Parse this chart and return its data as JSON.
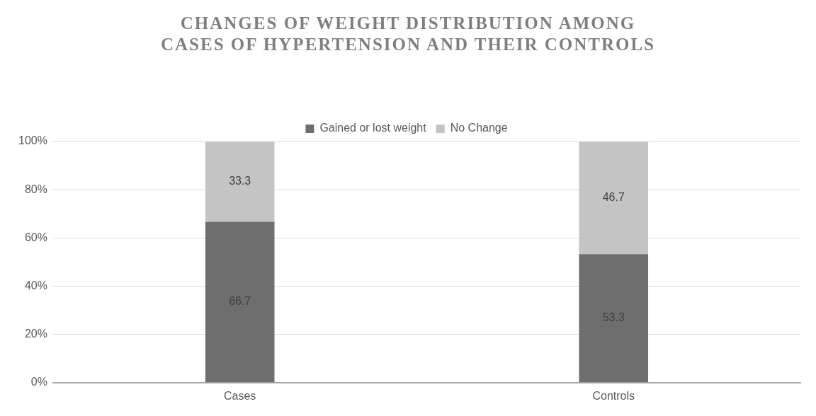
{
  "chart_data": {
    "type": "bar",
    "title": "CHANGES OF WEIGHT DISTRIBUTION AMONG CASES OF HYPERTENSION AND THEIR CONTROLS",
    "categories": [
      "Cases",
      "Controls"
    ],
    "stacked": true,
    "series": [
      {
        "name": "Gained or lost weight",
        "color": "#6e6e6e",
        "values": [
          66.7,
          53.3
        ]
      },
      {
        "name": "No Change",
        "color": "#c4c4c4",
        "values": [
          33.3,
          46.7
        ]
      }
    ],
    "ylim": [
      0,
      100
    ],
    "yticks": [
      {
        "value": 0,
        "label": "0%"
      },
      {
        "value": 20,
        "label": "20%"
      },
      {
        "value": 40,
        "label": "40%"
      },
      {
        "value": 60,
        "label": "60%"
      },
      {
        "value": 80,
        "label": "80%"
      },
      {
        "value": 100,
        "label": "100%"
      }
    ],
    "grid": "y",
    "legend": "top",
    "data_labels": true
  }
}
